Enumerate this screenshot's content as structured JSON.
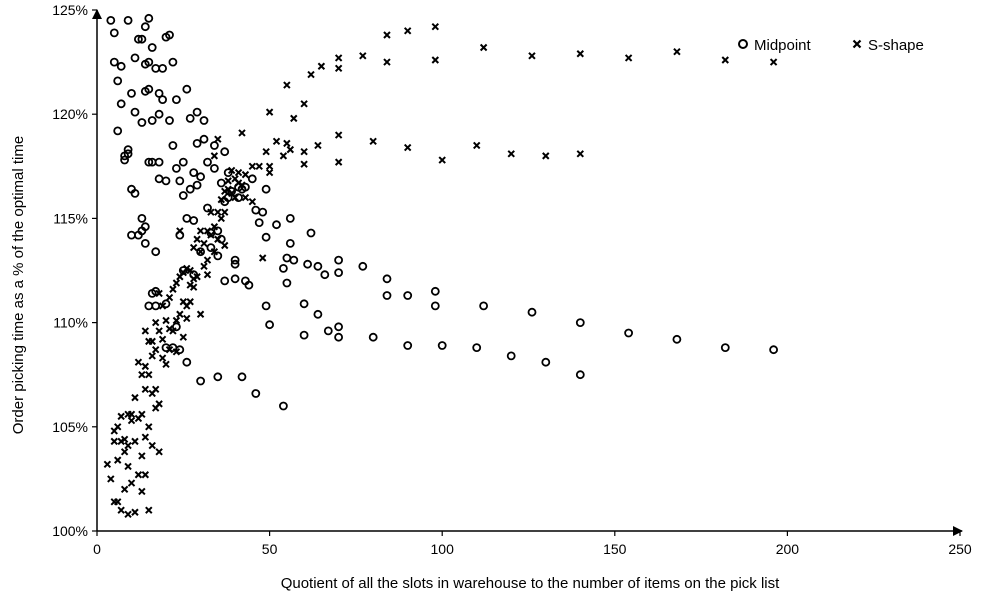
{
  "chart_data": {
    "type": "scatter",
    "title": "",
    "xlabel": "Quotient of all the slots in warehouse to the number of items on the pick list",
    "ylabel": "Order picking time as a % of the optimal time",
    "xlim": [
      0,
      250
    ],
    "ylim": [
      100,
      125
    ],
    "x_ticks": [
      "0",
      "50",
      "100",
      "150",
      "200",
      "250"
    ],
    "y_ticks": [
      "100%",
      "105%",
      "110%",
      "115%",
      "120%",
      "125%"
    ],
    "grid": false,
    "legend_position": "top-right",
    "series": [
      {
        "name": "Midpoint",
        "marker": "circle",
        "points": [
          [
            4,
            124.5
          ],
          [
            5,
            123.9
          ],
          [
            5,
            122.5
          ],
          [
            6,
            121.6
          ],
          [
            6,
            119.2
          ],
          [
            7,
            122.3
          ],
          [
            7,
            120.5
          ],
          [
            8,
            118.0
          ],
          [
            8,
            117.8
          ],
          [
            9,
            118.3
          ],
          [
            9,
            118.1
          ],
          [
            9,
            124.5
          ],
          [
            10,
            116.4
          ],
          [
            10,
            114.2
          ],
          [
            10,
            121.0
          ],
          [
            11,
            116.2
          ],
          [
            11,
            120.1
          ],
          [
            11,
            122.7
          ],
          [
            12,
            114.2
          ],
          [
            12,
            123.6
          ],
          [
            13,
            115.0
          ],
          [
            13,
            114.4
          ],
          [
            13,
            119.6
          ],
          [
            13,
            123.6
          ],
          [
            14,
            113.8
          ],
          [
            14,
            114.6
          ],
          [
            14,
            121.1
          ],
          [
            14,
            122.4
          ],
          [
            14,
            124.2
          ],
          [
            15,
            124.6
          ],
          [
            15,
            122.5
          ],
          [
            15,
            121.2
          ],
          [
            15,
            117.7
          ],
          [
            15,
            110.8
          ],
          [
            16,
            111.4
          ],
          [
            16,
            117.7
          ],
          [
            16,
            123.2
          ],
          [
            16,
            119.7
          ],
          [
            17,
            122.2
          ],
          [
            17,
            110.8
          ],
          [
            17,
            113.4
          ],
          [
            17,
            111.5
          ],
          [
            18,
            117.7
          ],
          [
            18,
            121.0
          ],
          [
            18,
            120.0
          ],
          [
            18,
            116.9
          ],
          [
            19,
            122.2
          ],
          [
            19,
            120.7
          ],
          [
            20,
            123.7
          ],
          [
            20,
            116.8
          ],
          [
            20,
            108.8
          ],
          [
            20,
            110.9
          ],
          [
            21,
            119.7
          ],
          [
            21,
            123.8
          ],
          [
            22,
            118.5
          ],
          [
            22,
            122.5
          ],
          [
            22,
            108.8
          ],
          [
            23,
            117.4
          ],
          [
            23,
            120.7
          ],
          [
            23,
            109.8
          ],
          [
            24,
            116.8
          ],
          [
            24,
            114.2
          ],
          [
            24,
            108.7
          ],
          [
            25,
            117.7
          ],
          [
            25,
            116.1
          ],
          [
            25,
            112.5
          ],
          [
            26,
            115.0
          ],
          [
            26,
            121.2
          ],
          [
            26,
            108.1
          ],
          [
            27,
            116.4
          ],
          [
            27,
            119.8
          ],
          [
            28,
            117.2
          ],
          [
            28,
            114.9
          ],
          [
            28,
            112.3
          ],
          [
            29,
            118.6
          ],
          [
            29,
            116.6
          ],
          [
            29,
            120.1
          ],
          [
            30,
            117.0
          ],
          [
            30,
            113.4
          ],
          [
            30,
            107.2
          ],
          [
            31,
            119.7
          ],
          [
            31,
            118.8
          ],
          [
            32,
            117.7
          ],
          [
            32,
            115.5
          ],
          [
            33,
            114.3
          ],
          [
            33,
            113.6
          ],
          [
            34,
            118.5
          ],
          [
            34,
            117.4
          ],
          [
            35,
            114.4
          ],
          [
            35,
            113.2
          ],
          [
            35,
            107.4
          ],
          [
            36,
            116.7
          ],
          [
            36,
            114.0
          ],
          [
            37,
            118.2
          ],
          [
            37,
            115.8
          ],
          [
            37,
            112.0
          ],
          [
            38,
            116.0
          ],
          [
            38,
            117.2
          ],
          [
            39,
            116.3
          ],
          [
            40,
            112.8
          ],
          [
            40,
            113.0
          ],
          [
            40,
            112.1
          ],
          [
            41,
            116.5
          ],
          [
            41,
            116.0
          ],
          [
            42,
            116.4
          ],
          [
            42,
            107.4
          ],
          [
            43,
            116.5
          ],
          [
            43,
            112.0
          ],
          [
            44,
            111.8
          ],
          [
            45,
            116.9
          ],
          [
            46,
            115.4
          ],
          [
            46,
            106.6
          ],
          [
            47,
            114.8
          ],
          [
            48,
            115.3
          ],
          [
            49,
            114.1
          ],
          [
            49,
            116.4
          ],
          [
            49,
            110.8
          ],
          [
            50,
            109.9
          ],
          [
            52,
            114.7
          ],
          [
            54,
            112.6
          ],
          [
            54,
            106.0
          ],
          [
            55,
            113.1
          ],
          [
            55,
            111.9
          ],
          [
            56,
            113.8
          ],
          [
            56,
            115.0
          ],
          [
            57,
            113.0
          ],
          [
            60,
            110.9
          ],
          [
            60,
            109.4
          ],
          [
            61,
            112.8
          ],
          [
            62,
            114.3
          ],
          [
            64,
            112.7
          ],
          [
            64,
            110.4
          ],
          [
            66,
            112.3
          ],
          [
            67,
            109.6
          ],
          [
            70,
            113.0
          ],
          [
            70,
            112.4
          ],
          [
            70,
            109.8
          ],
          [
            70,
            109.3
          ],
          [
            77,
            112.7
          ],
          [
            80,
            109.3
          ],
          [
            84,
            112.1
          ],
          [
            84,
            111.3
          ],
          [
            90,
            111.3
          ],
          [
            90,
            108.9
          ],
          [
            98,
            111.5
          ],
          [
            98,
            110.8
          ],
          [
            100,
            108.9
          ],
          [
            110,
            108.8
          ],
          [
            112,
            110.8
          ],
          [
            120,
            108.4
          ],
          [
            126,
            110.5
          ],
          [
            130,
            108.1
          ],
          [
            140,
            110.0
          ],
          [
            140,
            107.5
          ],
          [
            154,
            109.5
          ],
          [
            168,
            109.2
          ],
          [
            182,
            108.8
          ],
          [
            196,
            108.7
          ]
        ]
      },
      {
        "name": "S-shape",
        "marker": "x",
        "points": [
          [
            3,
            103.2
          ],
          [
            4,
            102.5
          ],
          [
            5,
            104.3
          ],
          [
            5,
            104.8
          ],
          [
            5,
            101.4
          ],
          [
            6,
            105.0
          ],
          [
            6,
            103.4
          ],
          [
            6,
            101.4
          ],
          [
            7,
            105.5
          ],
          [
            7,
            104.3
          ],
          [
            7,
            101.0
          ],
          [
            8,
            103.8
          ],
          [
            8,
            104.4
          ],
          [
            8,
            102.0
          ],
          [
            9,
            105.6
          ],
          [
            9,
            104.1
          ],
          [
            9,
            103.1
          ],
          [
            9,
            100.8
          ],
          [
            10,
            105.6
          ],
          [
            10,
            105.3
          ],
          [
            10,
            102.3
          ],
          [
            11,
            106.4
          ],
          [
            11,
            104.3
          ],
          [
            11,
            100.9
          ],
          [
            12,
            108.1
          ],
          [
            12,
            105.4
          ],
          [
            12,
            102.7
          ],
          [
            13,
            107.5
          ],
          [
            13,
            105.6
          ],
          [
            13,
            103.6
          ],
          [
            13,
            101.9
          ],
          [
            14,
            109.6
          ],
          [
            14,
            107.9
          ],
          [
            14,
            106.8
          ],
          [
            14,
            104.5
          ],
          [
            14,
            102.7
          ],
          [
            15,
            109.1
          ],
          [
            15,
            107.5
          ],
          [
            15,
            105.0
          ],
          [
            15,
            101.0
          ],
          [
            16,
            109.1
          ],
          [
            16,
            108.4
          ],
          [
            16,
            106.6
          ],
          [
            16,
            104.1
          ],
          [
            17,
            110.0
          ],
          [
            17,
            108.7
          ],
          [
            17,
            106.8
          ],
          [
            17,
            105.9
          ],
          [
            18,
            111.4
          ],
          [
            18,
            109.6
          ],
          [
            18,
            106.1
          ],
          [
            18,
            103.8
          ],
          [
            19,
            110.8
          ],
          [
            19,
            109.2
          ],
          [
            19,
            108.3
          ],
          [
            20,
            110.1
          ],
          [
            20,
            108.0
          ],
          [
            21,
            111.2
          ],
          [
            21,
            109.7
          ],
          [
            21,
            108.7
          ],
          [
            22,
            111.6
          ],
          [
            22,
            109.6
          ],
          [
            23,
            111.9
          ],
          [
            23,
            110.1
          ],
          [
            23,
            108.6
          ],
          [
            24,
            114.4
          ],
          [
            24,
            112.2
          ],
          [
            24,
            110.4
          ],
          [
            25,
            112.4
          ],
          [
            25,
            111.0
          ],
          [
            25,
            109.3
          ],
          [
            26,
            112.6
          ],
          [
            26,
            110.8
          ],
          [
            26,
            110.2
          ],
          [
            27,
            112.5
          ],
          [
            27,
            111.8
          ],
          [
            27,
            111.0
          ],
          [
            28,
            113.6
          ],
          [
            28,
            112.1
          ],
          [
            28,
            111.7
          ],
          [
            29,
            114.0
          ],
          [
            29,
            112.2
          ],
          [
            30,
            114.4
          ],
          [
            30,
            113.4
          ],
          [
            30,
            110.4
          ],
          [
            31,
            113.8
          ],
          [
            31,
            112.7
          ],
          [
            32,
            114.4
          ],
          [
            32,
            113.0
          ],
          [
            32,
            112.3
          ],
          [
            33,
            115.3
          ],
          [
            33,
            114.2
          ],
          [
            34,
            114.6
          ],
          [
            34,
            113.4
          ],
          [
            34,
            118.0
          ],
          [
            35,
            115.3
          ],
          [
            35,
            114.0
          ],
          [
            35,
            118.8
          ],
          [
            36,
            115.9
          ],
          [
            36,
            115.0
          ],
          [
            37,
            116.3
          ],
          [
            37,
            115.3
          ],
          [
            37,
            113.7
          ],
          [
            38,
            116.8
          ],
          [
            38,
            116.4
          ],
          [
            39,
            117.3
          ],
          [
            39,
            116.2
          ],
          [
            40,
            116.9
          ],
          [
            40,
            116.0
          ],
          [
            41,
            117.2
          ],
          [
            41,
            116.7
          ],
          [
            42,
            116.6
          ],
          [
            42,
            119.1
          ],
          [
            43,
            117.1
          ],
          [
            43,
            116.0
          ],
          [
            45,
            117.5
          ],
          [
            45,
            115.8
          ],
          [
            47,
            117.5
          ],
          [
            48,
            113.1
          ],
          [
            49,
            118.2
          ],
          [
            50,
            120.1
          ],
          [
            50,
            117.5
          ],
          [
            50,
            117.2
          ],
          [
            52,
            118.7
          ],
          [
            54,
            118.0
          ],
          [
            55,
            121.4
          ],
          [
            55,
            118.6
          ],
          [
            56,
            118.3
          ],
          [
            57,
            119.8
          ],
          [
            60,
            120.5
          ],
          [
            60,
            118.2
          ],
          [
            60,
            117.6
          ],
          [
            62,
            121.9
          ],
          [
            64,
            118.5
          ],
          [
            65,
            122.3
          ],
          [
            70,
            122.7
          ],
          [
            70,
            122.2
          ],
          [
            70,
            119.0
          ],
          [
            70,
            117.7
          ],
          [
            77,
            122.8
          ],
          [
            80,
            118.7
          ],
          [
            84,
            123.8
          ],
          [
            84,
            122.5
          ],
          [
            90,
            124.0
          ],
          [
            90,
            118.4
          ],
          [
            98,
            124.2
          ],
          [
            98,
            122.6
          ],
          [
            100,
            117.8
          ],
          [
            110,
            118.5
          ],
          [
            112,
            123.2
          ],
          [
            120,
            118.1
          ],
          [
            126,
            122.8
          ],
          [
            130,
            118.0
          ],
          [
            140,
            122.9
          ],
          [
            140,
            118.1
          ],
          [
            154,
            122.7
          ],
          [
            168,
            123.0
          ],
          [
            182,
            122.6
          ],
          [
            196,
            122.5
          ]
        ]
      }
    ]
  }
}
